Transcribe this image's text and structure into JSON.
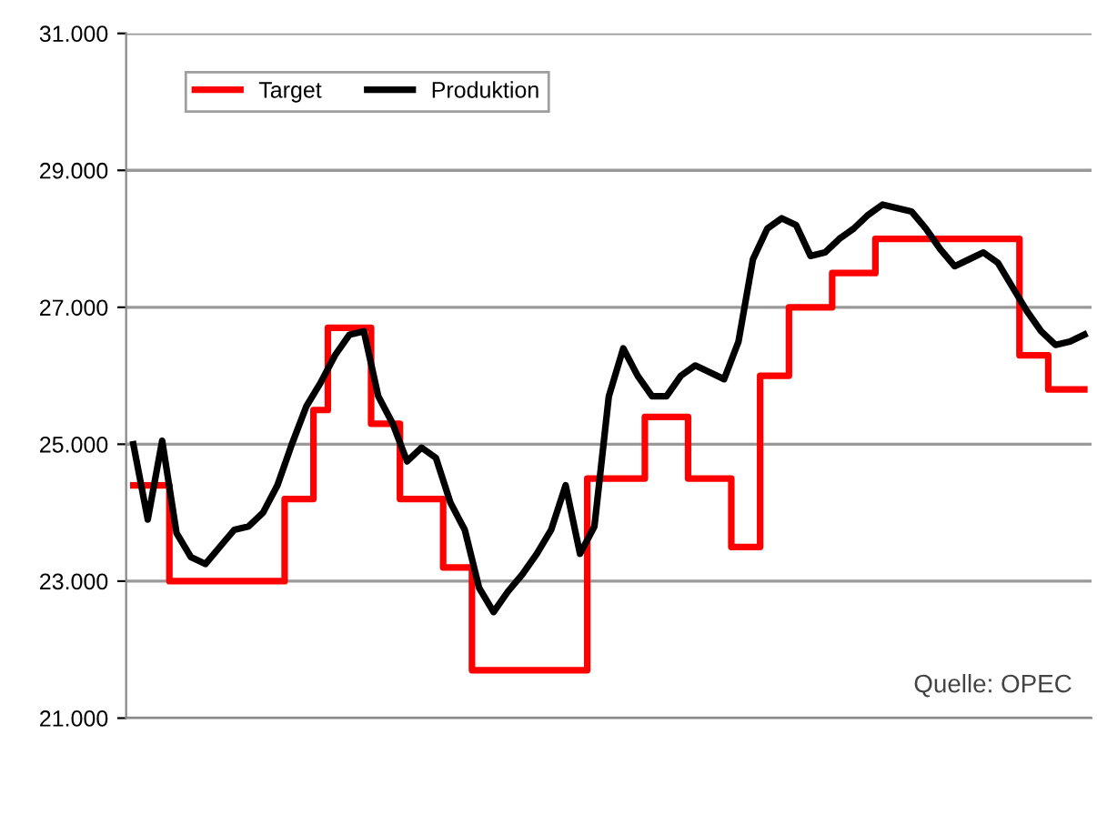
{
  "chart_data": {
    "type": "line",
    "categories": [
      null,
      null,
      null,
      null,
      null,
      null,
      null,
      null,
      null,
      null,
      null,
      null,
      null,
      null,
      null,
      null,
      null,
      null,
      null,
      null,
      null,
      null,
      null,
      null,
      null,
      null,
      null,
      null,
      null,
      null,
      null,
      null,
      null,
      null,
      null,
      null,
      null,
      null,
      null,
      null,
      null,
      null,
      null,
      null,
      null,
      null,
      null,
      null,
      null,
      null,
      null,
      null,
      null,
      null,
      null,
      null,
      null,
      null,
      null,
      null,
      null,
      null,
      null,
      null,
      null,
      null,
      null
    ],
    "series": [
      {
        "name": "Target",
        "type": "step",
        "color": "#ff0000",
        "values": [
          24400,
          24400,
          24400,
          23000,
          23000,
          23000,
          23000,
          23000,
          23000,
          23000,
          23000,
          24200,
          24200,
          25500,
          26700,
          26700,
          26700,
          25300,
          25300,
          24200,
          24200,
          24200,
          23200,
          23200,
          21700,
          21700,
          21700,
          21700,
          21700,
          21700,
          21700,
          21700,
          24500,
          24500,
          24500,
          24500,
          25400,
          25400,
          25400,
          24500,
          24500,
          24500,
          23500,
          23500,
          26000,
          26000,
          27000,
          27000,
          27000,
          27500,
          27500,
          27500,
          28000,
          28000,
          28000,
          28000,
          28000,
          28000,
          28000,
          28000,
          28000,
          28000,
          26300,
          26300,
          25800,
          25800,
          25800
        ]
      },
      {
        "name": "Produktion",
        "color": "#000000",
        "values": [
          25000,
          23900,
          25050,
          23700,
          23350,
          23250,
          23500,
          23750,
          23800,
          24000,
          24400,
          25000,
          25550,
          25900,
          26300,
          26600,
          26650,
          25700,
          25300,
          24750,
          24950,
          24800,
          24150,
          23750,
          22900,
          22550,
          22850,
          23100,
          23400,
          23750,
          24400,
          23400,
          23800,
          25700,
          26400,
          26000,
          25700,
          25700,
          26000,
          26150,
          26050,
          25950,
          26500,
          27700,
          28150,
          28300,
          28200,
          27750,
          27800,
          28000,
          28150,
          28350,
          28500,
          28450,
          28400,
          28150,
          27850,
          27600,
          27700,
          27800,
          27650,
          27300,
          26950,
          26650,
          26450,
          26500,
          26600
        ]
      }
    ],
    "ylim": [
      21000,
      31000
    ],
    "yticks": [
      {
        "value": 21000,
        "label": "21.000"
      },
      {
        "value": 23000,
        "label": "23.000"
      },
      {
        "value": 25000,
        "label": "25.000"
      },
      {
        "value": 27000,
        "label": "27.000"
      },
      {
        "value": 29000,
        "label": "29.000"
      },
      {
        "value": 31000,
        "label": "31.000"
      }
    ],
    "grid": "y",
    "legend": "top left",
    "tick_labels": "y",
    "annotations": [
      "Quelle: OPEC"
    ]
  }
}
